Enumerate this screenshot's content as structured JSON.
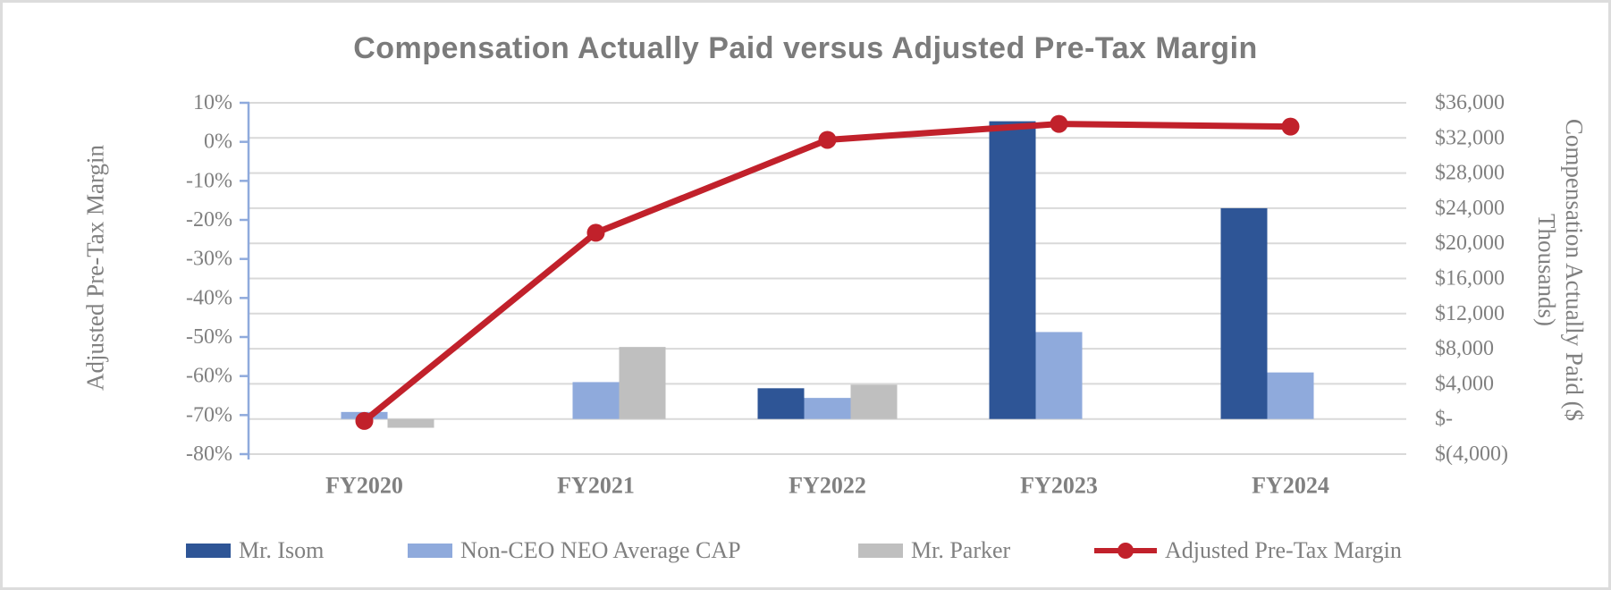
{
  "title": "Compensation Actually Paid versus Adjusted Pre-Tax Margin",
  "chart_data": {
    "type": "bar",
    "subtype": "combo-bar-line-dual-axis",
    "categories": [
      "FY2020",
      "FY2021",
      "FY2022",
      "FY2023",
      "FY2024"
    ],
    "series": [
      {
        "name": "Mr. Isom",
        "type": "bar",
        "axis": "right",
        "color": "#2E5596",
        "values": [
          null,
          null,
          3500,
          33900,
          24000
        ]
      },
      {
        "name": "Non-CEO NEO Average CAP",
        "type": "bar",
        "axis": "right",
        "color": "#8FAADC",
        "values": [
          800,
          4200,
          2400,
          9900,
          5300
        ]
      },
      {
        "name": "Mr. Parker",
        "type": "bar",
        "axis": "right",
        "color": "#BFBFBF",
        "values": [
          -1000,
          8200,
          3900,
          null,
          null
        ]
      },
      {
        "name": "Adjusted Pre-Tax Margin",
        "type": "line",
        "axis": "left",
        "color": "#C1212B",
        "values": [
          -71.5,
          -23.3,
          0.5,
          4.6,
          3.9
        ]
      }
    ],
    "left_axis": {
      "title": "Adjusted Pre-Tax Margin",
      "min": -80,
      "max": 10,
      "step": 10,
      "tick_labels": [
        "10%",
        "0%",
        "-10%",
        "-20%",
        "-30%",
        "-40%",
        "-50%",
        "-60%",
        "-70%",
        "-80%"
      ]
    },
    "right_axis": {
      "title": "Compensation Actually Paid ($ Thousands)",
      "min": -4000,
      "max": 36000,
      "step": 4000,
      "tick_labels": [
        "$36,000",
        "$32,000",
        "$28,000",
        "$24,000",
        "$20,000",
        "$16,000",
        "$12,000",
        "$8,000",
        "$4,000",
        "$-",
        "$(4,000)"
      ]
    },
    "grid": true,
    "legend_position": "bottom",
    "colors": {
      "gridline": "#D9D9D9",
      "axis_line": "#8FAADC",
      "tick_text": "#808080",
      "category_text": "#808080",
      "title_text": "#7B7B7B"
    }
  }
}
